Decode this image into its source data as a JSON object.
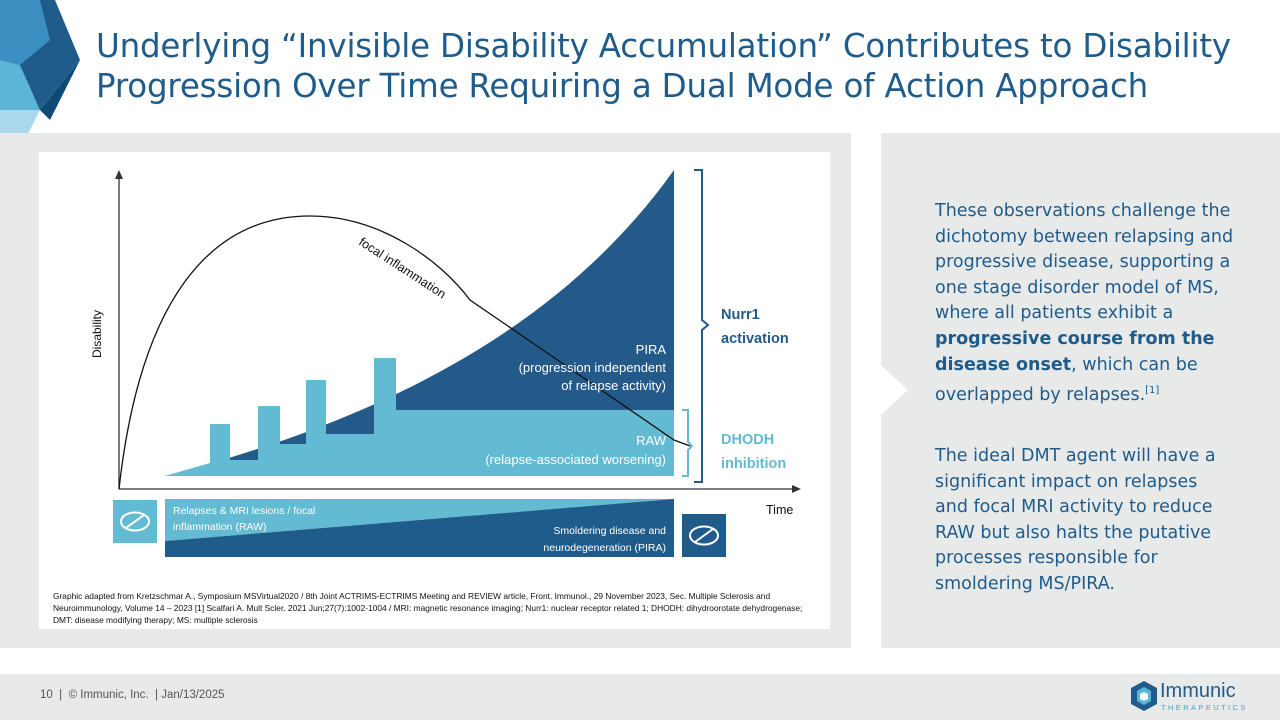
{
  "title": "Underlying “Invisible Disability Accumulation” Contributes to Disability Progression Over Time Requiring a Dual Mode of Action Approach",
  "diagram": {
    "y_axis_label": "Disability",
    "x_axis_label": "Time",
    "curve_label": "focal inflammation",
    "pira_label_1": "PIRA",
    "pira_label_2": "(progression independent",
    "pira_label_3": "of relapse activity)",
    "raw_label_1": "RAW",
    "raw_label_2": "(relapse-associated worsening)",
    "nurr1_label_1": "Nurr1",
    "nurr1_label_2": "activation",
    "dhodh_label_1": "DHODH",
    "dhodh_label_2": "inhibition",
    "bar_top_label_1": "Relapses & MRI lesions / focal",
    "bar_top_label_2": "inflammation (RAW)",
    "bar_bottom_label_1": "Smoldering disease and",
    "bar_bottom_label_2": "neurodegeneration (PIRA)",
    "colors": {
      "dark": "#235a8a",
      "light": "#62bad3",
      "accent": "#1f5c8b"
    }
  },
  "source_note": "Graphic adapted from Kretzschmar A., Symposium MSVirtual2020 / 8th Joint ACTRIMS-ECTRIMS Meeting and REVIEW article, Front. Immunol., 29 November 2023, Sec. Multiple Sclerosis and Neuroimmunology, Volume 14 – 2023 [1] Scalfari A. Mult Scler. 2021 Jun;27(7):1002-1004 / MRI: magnetic resonance imaging; Nurr1: nuclear receptor related 1; DHODH: dihydroorotate dehydrogenase; DMT: disease modifying therapy; MS: multiple sclerosis",
  "panel": {
    "p1_a": "These observations challenge the dichotomy between relapsing and progressive disease, supporting a one stage disorder model of MS, where all patients exhibit a ",
    "p1_bold": "progressive course from the disease onset",
    "p1_b": ", which can be overlapped by relapses.",
    "p1_sup": "[1]",
    "p2": "The ideal DMT agent will have a significant impact on relapses and focal MRI activity to reduce RAW but also halts the putative processes responsible for smoldering MS/PIRA."
  },
  "footer": {
    "page": "10",
    "company": "© Immunic, Inc.",
    "date": "Jan/13/2025",
    "logo_name": "Immunic",
    "logo_sub": "THERAPEUTICS"
  }
}
